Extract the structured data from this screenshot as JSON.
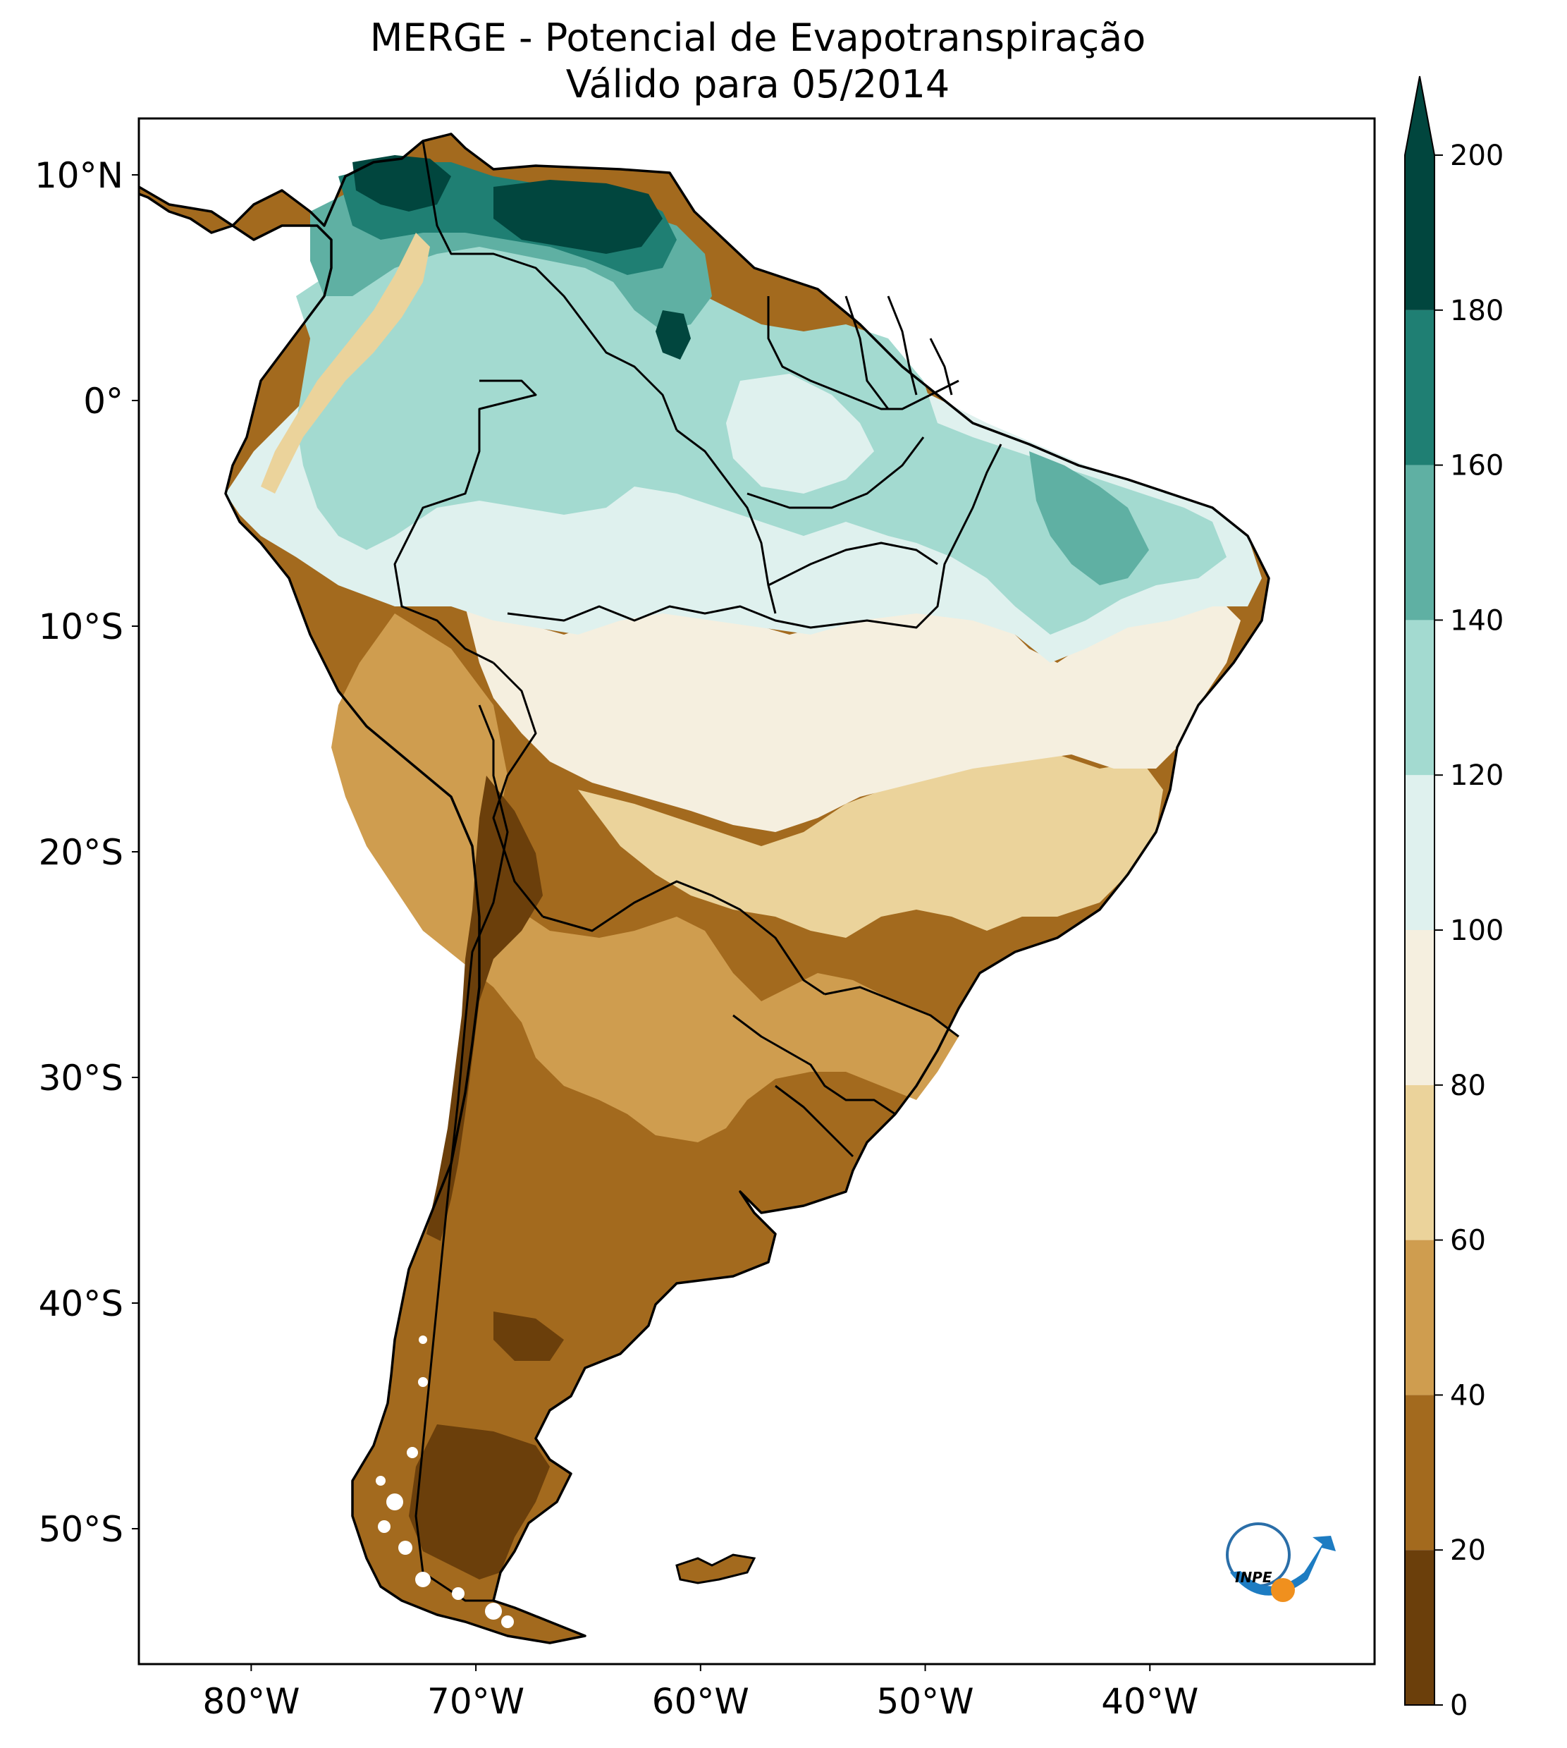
{
  "title": "MERGE - Potencial de Evapotranspiração",
  "subtitle": "Válido para 05/2014",
  "lat_labels": [
    {
      "text": "10°N",
      "lat": 10
    },
    {
      "text": "0°",
      "lat": 0
    },
    {
      "text": "10°S",
      "lat": -10
    },
    {
      "text": "20°S",
      "lat": -20
    },
    {
      "text": "30°S",
      "lat": -30
    },
    {
      "text": "40°S",
      "lat": -40
    },
    {
      "text": "50°S",
      "lat": -50
    }
  ],
  "lon_labels": [
    {
      "text": "80°W",
      "lon": -80
    },
    {
      "text": "70°W",
      "lon": -70
    },
    {
      "text": "60°W",
      "lon": -60
    },
    {
      "text": "50°W",
      "lon": -50
    },
    {
      "text": "40°W",
      "lon": -40
    }
  ],
  "extent": {
    "lon_min": -85,
    "lon_max": -30,
    "lat_min": -56,
    "lat_max": 12.5
  },
  "colorbar": {
    "ticks": [
      "0",
      "20",
      "40",
      "60",
      "80",
      "100",
      "120",
      "140",
      "160",
      "180",
      "200"
    ],
    "levels": [
      0,
      20,
      40,
      60,
      80,
      100,
      120,
      140,
      160,
      180,
      200
    ],
    "colors": [
      "#6b3f0b",
      "#a36a1e",
      "#cf9d4f",
      "#ebd39b",
      "#f5efdf",
      "#dff1ee",
      "#a3dad0",
      "#5fb0a3",
      "#1f7f73",
      "#01463e"
    ],
    "extend_color": "#01463e",
    "extend": "max"
  },
  "logo_text": "INPE"
}
